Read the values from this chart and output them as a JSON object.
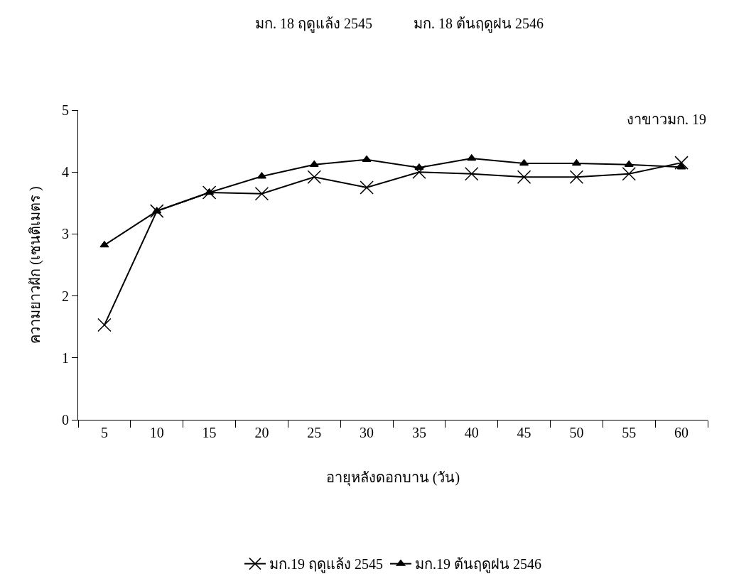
{
  "chart_data": {
    "type": "line",
    "categories": [
      "5",
      "10",
      "15",
      "20",
      "25",
      "30",
      "35",
      "40",
      "45",
      "50",
      "55",
      "60"
    ],
    "series": [
      {
        "name": "มก.19 ฤดูแล้ง 2545",
        "color": "#000000",
        "marker": "cross",
        "values": [
          1.53,
          3.37,
          3.67,
          3.65,
          3.92,
          3.75,
          4.0,
          3.97,
          3.92,
          3.92,
          3.97,
          4.15
        ]
      },
      {
        "name": "มก.19 ต้นฤดูฝน 2546",
        "color": "#000000",
        "marker": "triangle",
        "values": [
          2.82,
          3.37,
          3.67,
          3.93,
          4.12,
          4.2,
          4.07,
          4.22,
          4.14,
          4.14,
          4.12,
          4.08
        ]
      }
    ],
    "xlabel": "อายุหลังดอกบาน (วัน)",
    "ylabel": "ความยาวฝัก (เซนติเมตร )",
    "ylim": [
      0,
      5
    ],
    "yticks": [
      0,
      1,
      2,
      3,
      4,
      5
    ],
    "annotations": [
      "งาขาวมก. 19",
      "มก. 18 ฤดูแล้ง 2545",
      "มก. 18 ต้นฤดูฝน 2546"
    ],
    "legend": "bottom",
    "line_style": "solid"
  }
}
